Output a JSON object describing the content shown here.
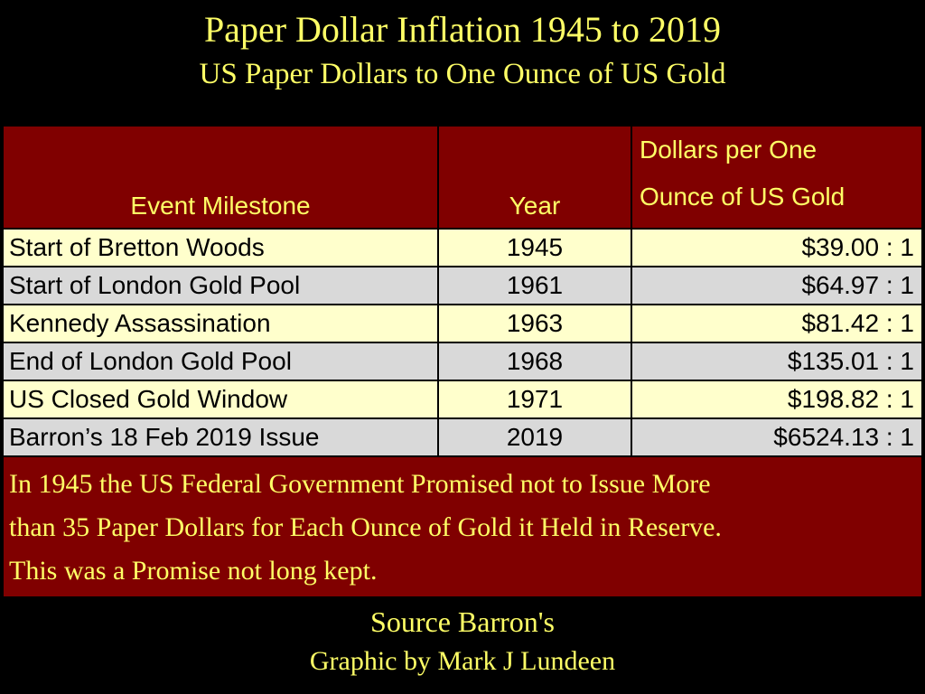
{
  "title": "Paper Dollar Inflation 1945 to 2019",
  "subtitle": "US Paper Dollars to One Ounce of US Gold",
  "chart_data": {
    "type": "table",
    "title": "Paper Dollar Inflation 1945 to 2019",
    "subtitle": "US Paper Dollars to One Ounce of US Gold",
    "columns": [
      "Event Milestone",
      "Year",
      "Dollars per One",
      "Ounce of US Gold"
    ],
    "rows": [
      {
        "event": "Start of Bretton Woods",
        "year": "1945",
        "ratio": "$39.00 : 1"
      },
      {
        "event": "Start of London Gold Pool",
        "year": "1961",
        "ratio": "$64.97 : 1"
      },
      {
        "event": "Kennedy Assassination",
        "year": "1963",
        "ratio": "$81.42 : 1"
      },
      {
        "event": "End of London Gold Pool",
        "year": "1968",
        "ratio": "$135.01 : 1"
      },
      {
        "event": "US Closed Gold Window",
        "year": "1971",
        "ratio": "$198.82 : 1"
      },
      {
        "event": "Barron’s 18 Feb 2019 Issue",
        "year": "2019",
        "ratio": "$6524.13 : 1"
      }
    ],
    "note": [
      "In 1945 the US Federal Government Promised not to Issue More",
      "than 35 Paper Dollars for Each Ounce of Gold it Held in Reserve.",
      "This was a Promise not long kept."
    ]
  },
  "footer": {
    "source": "Source Barron's",
    "credit": "Graphic by Mark J Lundeen"
  },
  "colors": {
    "background": "#000000",
    "header_fill": "#800000",
    "header_text": "#ffff66",
    "row_odd": "#ffffcc",
    "row_even": "#d9d9d9"
  }
}
